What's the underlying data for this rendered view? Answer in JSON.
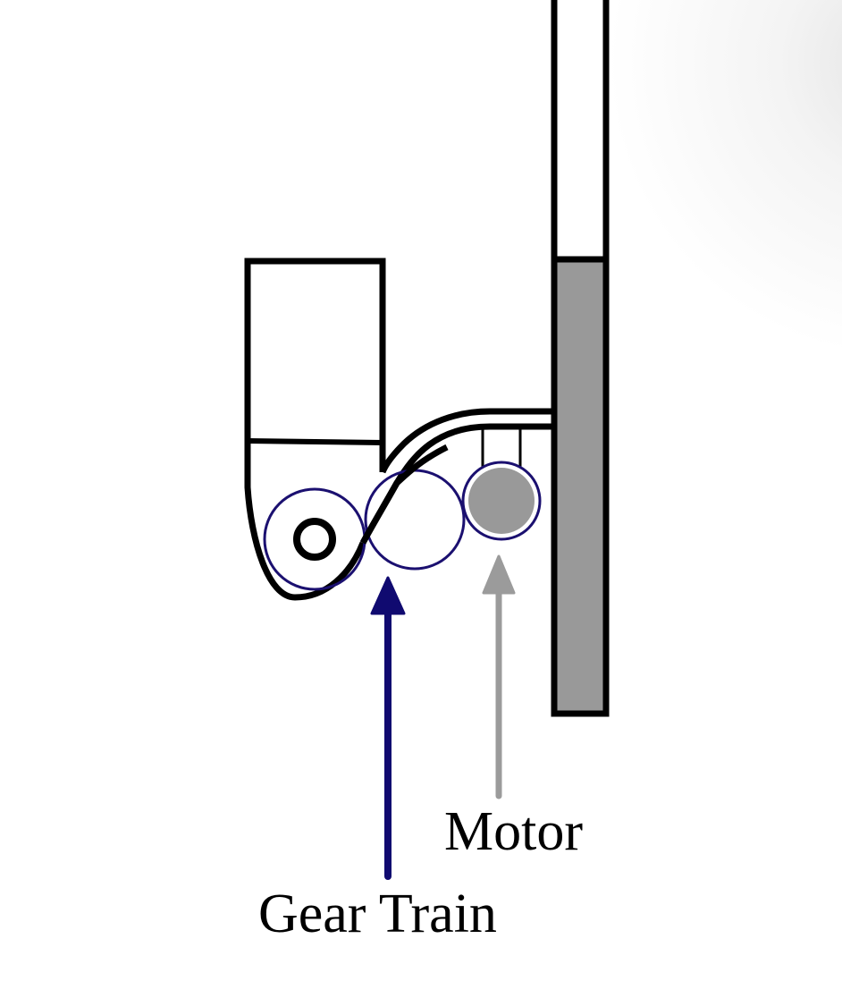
{
  "labels": {
    "motor": "Motor",
    "gear_train": "Gear Train"
  },
  "colors": {
    "outline": "#000000",
    "gear_outline": "#1b1070",
    "gear_arrow": "#100a70",
    "motor_fill": "#999999",
    "motor_arrow": "#9b9b9b",
    "rail_fill": "#999999",
    "background": "#ffffff"
  },
  "parts": [
    "arm-block",
    "flexure-strip",
    "vertical-rail",
    "output-gear",
    "idler-gear",
    "motor-gear",
    "motor-arrow",
    "gear-train-arrow"
  ]
}
